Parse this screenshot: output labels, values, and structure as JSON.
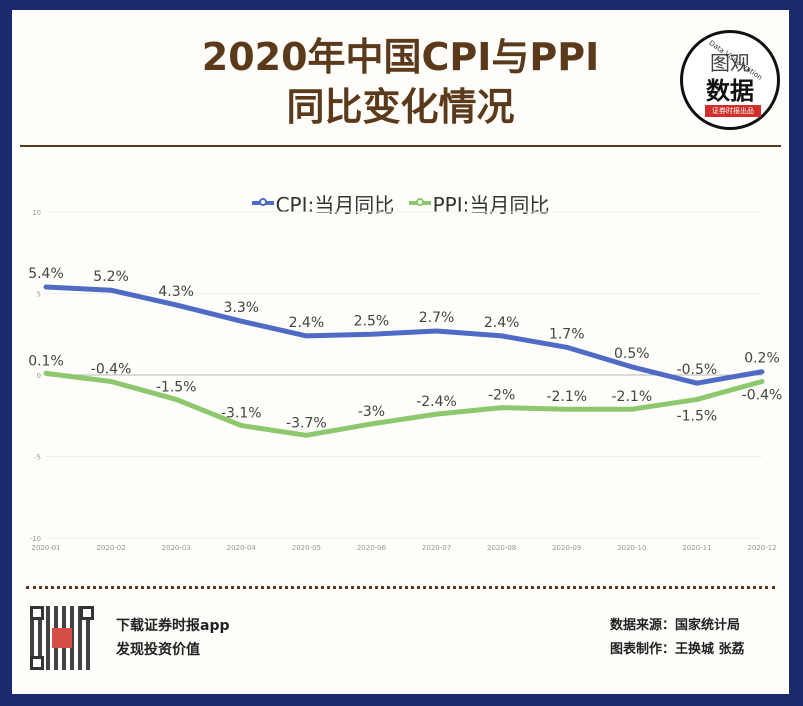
{
  "title": {
    "line1": "2020年中国CPI与PPI",
    "line2": "同比变化情况"
  },
  "logo": {
    "line1": "图观",
    "line2": "数据",
    "tag": "证券时报出品",
    "arc_text": "Data Visualization"
  },
  "chart_data": {
    "type": "line",
    "categories": [
      "2020-01",
      "2020-02",
      "2020-03",
      "2020-04",
      "2020-05",
      "2020-06",
      "2020-07",
      "2020-08",
      "2020-09",
      "2020-10",
      "2020-11",
      "2020-12"
    ],
    "series": [
      {
        "name": "CPI:当月同比",
        "color": "#4f6bc6",
        "values": [
          5.4,
          5.2,
          4.3,
          3.3,
          2.4,
          2.5,
          2.7,
          2.4,
          1.7,
          0.5,
          -0.5,
          0.2
        ],
        "labels": [
          "5.4%",
          "5.2%",
          "4.3%",
          "3.3%",
          "2.4%",
          "2.5%",
          "2.7%",
          "2.4%",
          "1.7%",
          "0.5%",
          "-0.5%",
          "0.2%"
        ]
      },
      {
        "name": "PPI:当月同比",
        "color": "#8dc86e",
        "values": [
          0.1,
          -0.4,
          -1.5,
          -3.1,
          -3.7,
          -3,
          -2.4,
          -2,
          -2.1,
          -2.1,
          -1.5,
          -0.4
        ],
        "labels": [
          "0.1%",
          "-0.4%",
          "-1.5%",
          "-3.1%",
          "-3.7%",
          "-3%",
          "-2.4%",
          "-2%",
          "-2.1%",
          "-2.1%",
          "-1.5%",
          "-0.4%"
        ]
      }
    ],
    "ylim": [
      -10,
      10
    ],
    "yticks": [
      "10",
      "5",
      "0",
      "-5",
      "-10"
    ],
    "ytick_values": [
      10,
      5,
      0,
      -5,
      -10
    ],
    "grid": true,
    "legend_position": "top-center"
  },
  "footer": {
    "download": "下载证券时报app",
    "slogan": "发现投资价值",
    "source": "数据来源：国家统计局",
    "credit": "图表制作：王换城 张荔"
  }
}
